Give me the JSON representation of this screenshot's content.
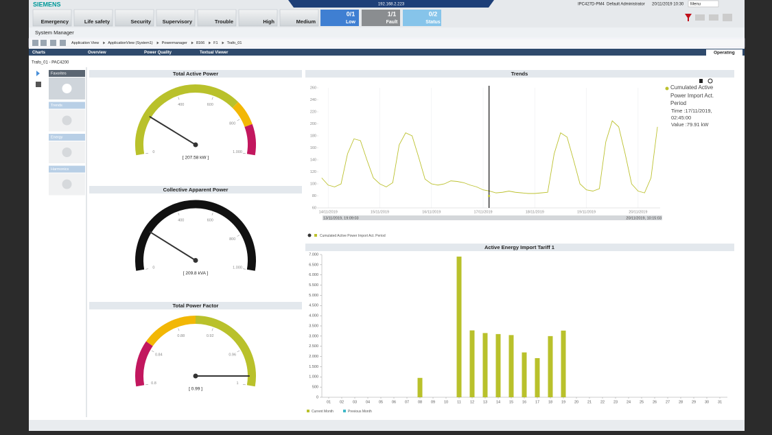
{
  "header": {
    "brand": "SIEMENS",
    "ip": "192.168.2.223",
    "station": "IPC427D-PM4",
    "user": "Default Administrator",
    "datetime": "20/11/2019 10:30",
    "menu": "Menu"
  },
  "alarm_buttons": [
    "Emergency",
    "Life safety",
    "Security",
    "Supervisory",
    "Trouble",
    "High",
    "Medium"
  ],
  "counters": [
    {
      "count": "0/1",
      "label": "Low",
      "color": "#3f7fd2"
    },
    {
      "count": "1/1",
      "label": "Fault",
      "color": "#8a8d90"
    },
    {
      "count": "0/2",
      "label": "Status",
      "color": "#86c4ea"
    }
  ],
  "app_title": "System Manager",
  "breadcrumb": [
    "Application View",
    "ApplicationView (System1)",
    "Powermanager",
    "8166",
    "F1",
    "Trafo_01"
  ],
  "tabs": [
    "Charts",
    "Overview",
    "Power Quality",
    "Textual Viewer"
  ],
  "mode": "Operating",
  "object": "Trafo_01 - PAC4200",
  "sidebar": [
    "Favorites",
    "Trends",
    "Energy",
    "Harmonics"
  ],
  "gauges": [
    {
      "type": "gauge",
      "title": "Total Active Power",
      "value": 207.58,
      "value_label": "[ 207.58 kW ]",
      "ylim": [
        0,
        1000
      ],
      "yticks": [
        0,
        400,
        600,
        800,
        {
          "value": 1000,
          "label": "1.000"
        }
      ],
      "bands": [
        {
          "from": 0,
          "to": 725,
          "color": "#b9c12b"
        },
        {
          "from": 725,
          "to": 850,
          "color": "#f2b705"
        },
        {
          "from": 850,
          "to": 1000,
          "color": "#c2175e"
        }
      ]
    },
    {
      "type": "gauge",
      "title": "Collective Apparent Power",
      "value": 209.8,
      "value_label": "[ 209.8 kVA ]",
      "ylim": [
        0,
        1000
      ],
      "yticks": [
        0,
        400,
        600,
        800,
        {
          "value": 1000,
          "label": "1.000"
        }
      ],
      "bands": [
        {
          "from": 0,
          "to": 1000,
          "color": "#111111"
        }
      ]
    },
    {
      "type": "gauge",
      "title": "Total Power Factor",
      "value": 0.99,
      "value_label": "[ 0.99 ]",
      "ylim": [
        0.8,
        1
      ],
      "yticks": [
        0.8,
        0.84,
        0.88,
        0.92,
        0.96,
        1
      ],
      "bands": [
        {
          "from": 0.8,
          "to": 0.845,
          "color": "#c2175e"
        },
        {
          "from": 0.845,
          "to": 0.9,
          "color": "#f2b705"
        },
        {
          "from": 0.9,
          "to": 1,
          "color": "#b9c12b"
        }
      ]
    }
  ],
  "trend": {
    "type": "line",
    "title": "Trends",
    "x": [
      "13/11/2019, 21:00",
      "14/11/2019, 00:00",
      "14/11/2019, 03:00",
      "14/11/2019, 06:00",
      "14/11/2019, 09:00",
      "14/11/2019, 12:00",
      "14/11/2019, 15:00",
      "14/11/2019, 18:00",
      "14/11/2019, 21:00",
      "15/11/2019, 00:00",
      "15/11/2019, 03:00",
      "15/11/2019, 06:00",
      "15/11/2019, 09:00",
      "15/11/2019, 12:00",
      "15/11/2019, 15:00",
      "15/11/2019, 18:00",
      "15/11/2019, 21:00",
      "16/11/2019, 00:00",
      "16/11/2019, 03:00",
      "16/11/2019, 06:00",
      "16/11/2019, 09:00",
      "16/11/2019, 12:00",
      "16/11/2019, 15:00",
      "16/11/2019, 18:00",
      "16/11/2019, 21:00",
      "17/11/2019, 00:00",
      "17/11/2019, 03:00",
      "17/11/2019, 06:00",
      "17/11/2019, 09:00",
      "17/11/2019, 12:00",
      "17/11/2019, 15:00",
      "17/11/2019, 18:00",
      "17/11/2019, 21:00",
      "18/11/2019, 00:00",
      "18/11/2019, 03:00",
      "18/11/2019, 06:00",
      "18/11/2019, 09:00",
      "18/11/2019, 12:00",
      "18/11/2019, 15:00",
      "18/11/2019, 18:00",
      "18/11/2019, 21:00",
      "19/11/2019, 00:00",
      "19/11/2019, 03:00",
      "19/11/2019, 06:00",
      "19/11/2019, 09:00",
      "19/11/2019, 12:00",
      "19/11/2019, 15:00",
      "19/11/2019, 18:00",
      "19/11/2019, 21:00",
      "20/11/2019, 00:00",
      "20/11/2019, 03:00",
      "20/11/2019, 06:00",
      "20/11/2019, 09:00"
    ],
    "series": [
      {
        "name": "Cumulated Active Power Import Act. Period",
        "color": "#bcc12e",
        "values": [
          110,
          98,
          95,
          100,
          150,
          175,
          172,
          140,
          110,
          100,
          95,
          102,
          165,
          185,
          180,
          145,
          108,
          100,
          98,
          100,
          105,
          104,
          102,
          98,
          95,
          90,
          88,
          85,
          86,
          88,
          86,
          85,
          84,
          84,
          85,
          86,
          150,
          185,
          178,
          140,
          100,
          90,
          88,
          92,
          170,
          205,
          195,
          150,
          100,
          88,
          85,
          110,
          195
        ]
      }
    ],
    "xlim": [
      "13/11/2019, 19:09:03",
      "20/11/2019, 10:15:03"
    ],
    "xticks": [
      "14/11/2019",
      "15/11/2019",
      "16/11/2019",
      "17/11/2019",
      "18/11/2019",
      "19/11/2019",
      "20/11/2019"
    ],
    "ylim": [
      60,
      260
    ],
    "yticks": [
      60,
      80,
      100,
      120,
      140,
      160,
      180,
      200,
      220,
      240,
      260
    ],
    "cursor": {
      "x_label": "Time :17/11/2019, 02:45:00",
      "value": 79.91,
      "value_label": "Value :79.91 kW"
    }
  },
  "energy": {
    "type": "bar",
    "title": "Active Energy Import Tariff 1",
    "categories": [
      "01",
      "02",
      "03",
      "04",
      "05",
      "06",
      "07",
      "08",
      "09",
      "10",
      "11",
      "12",
      "13",
      "14",
      "15",
      "16",
      "17",
      "18",
      "19",
      "20",
      "21",
      "22",
      "23",
      "24",
      "25",
      "26",
      "27",
      "28",
      "29",
      "30",
      "31"
    ],
    "series": [
      {
        "name": "Current Month",
        "color": "#b9c12b",
        "values": [
          null,
          null,
          null,
          null,
          null,
          null,
          null,
          950,
          null,
          null,
          6900,
          3280,
          3150,
          3100,
          3050,
          2200,
          1920,
          3000,
          3270,
          null,
          null,
          null,
          null,
          null,
          null,
          null,
          null,
          null,
          null,
          null,
          null
        ]
      },
      {
        "name": "Previous Month",
        "color": "#3fb8c8",
        "values": [
          null,
          null,
          null,
          null,
          null,
          null,
          null,
          null,
          null,
          null,
          null,
          null,
          null,
          null,
          null,
          null,
          null,
          null,
          null,
          null,
          null,
          null,
          null,
          null,
          null,
          null,
          null,
          null,
          null,
          null,
          null
        ]
      }
    ],
    "ylim": [
      0,
      7000
    ],
    "yticks": [
      0,
      500,
      {
        "value": 1000,
        "label": "1.000"
      },
      {
        "value": 1500,
        "label": "1.500"
      },
      {
        "value": 2000,
        "label": "2.000"
      },
      {
        "value": 2500,
        "label": "2.500"
      },
      {
        "value": 3000,
        "label": "3.000"
      },
      {
        "value": 3500,
        "label": "3.500"
      },
      {
        "value": 4000,
        "label": "4.000"
      },
      {
        "value": 4500,
        "label": "4.500"
      },
      {
        "value": 5000,
        "label": "5.000"
      },
      {
        "value": 5500,
        "label": "5.500"
      },
      {
        "value": 6000,
        "label": "6.000"
      },
      {
        "value": 6500,
        "label": "6.500"
      },
      {
        "value": 7000,
        "label": "7.000"
      }
    ]
  }
}
